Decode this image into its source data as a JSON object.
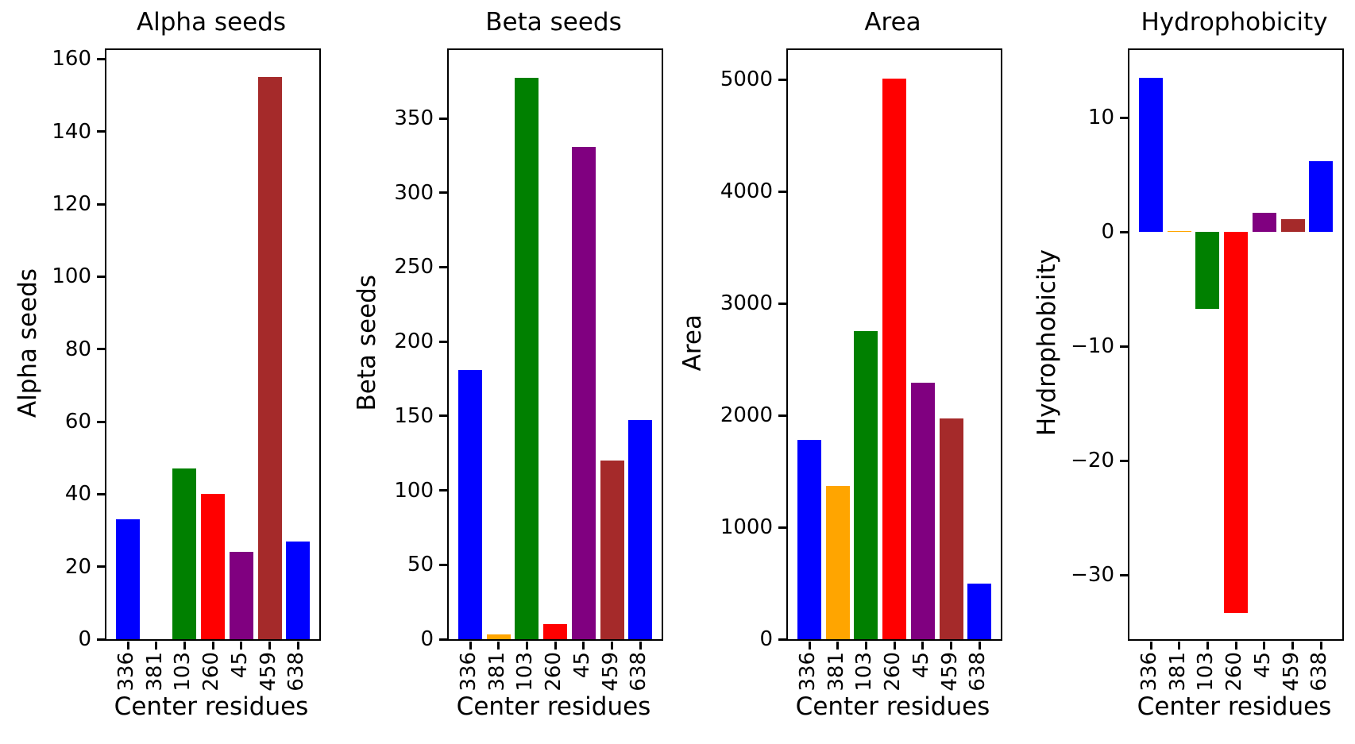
{
  "chart_data": [
    {
      "type": "bar",
      "title": "Alpha seeds",
      "ylabel": "Alpha seeds",
      "xlabel": "Center residues",
      "categories": [
        "336",
        "381",
        "103",
        "260",
        "45",
        "459",
        "638"
      ],
      "values": [
        33,
        0,
        47,
        40,
        24,
        155,
        27
      ],
      "bar_colors": [
        "#0000ff",
        "#ffa500",
        "#008000",
        "#ff0000",
        "#800080",
        "#a52a2a",
        "#0000ff"
      ],
      "yticks": [
        0,
        20,
        40,
        60,
        80,
        100,
        120,
        140,
        160
      ],
      "ytick_labels": [
        "0",
        "20",
        "40",
        "60",
        "80",
        "100",
        "120",
        "140",
        "160"
      ],
      "ylim": [
        0,
        162.5
      ],
      "grid": false,
      "legend_position": "none"
    },
    {
      "type": "bar",
      "title": "Beta seeds",
      "ylabel": "Beta seeds",
      "xlabel": "Center residues",
      "categories": [
        "336",
        "381",
        "103",
        "260",
        "45",
        "459",
        "638"
      ],
      "values": [
        181,
        3,
        377,
        10,
        331,
        120,
        147
      ],
      "bar_colors": [
        "#0000ff",
        "#ffa500",
        "#008000",
        "#ff0000",
        "#800080",
        "#a52a2a",
        "#0000ff"
      ],
      "yticks": [
        0,
        50,
        100,
        150,
        200,
        250,
        300,
        350
      ],
      "ytick_labels": [
        "0",
        "50",
        "100",
        "150",
        "200",
        "250",
        "300",
        "350"
      ],
      "ylim": [
        0,
        395.9
      ],
      "grid": false,
      "legend_position": "none"
    },
    {
      "type": "bar",
      "title": "Area",
      "ylabel": "Area",
      "xlabel": "Center residues",
      "categories": [
        "336",
        "381",
        "103",
        "260",
        "45",
        "459",
        "638"
      ],
      "values": [
        1780,
        1370,
        2750,
        5010,
        2290,
        1970,
        500
      ],
      "bar_colors": [
        "#0000ff",
        "#ffa500",
        "#008000",
        "#ff0000",
        "#800080",
        "#a52a2a",
        "#0000ff"
      ],
      "yticks": [
        0,
        1000,
        2000,
        3000,
        4000,
        5000
      ],
      "ytick_labels": [
        "0",
        "1000",
        "2000",
        "3000",
        "4000",
        "5000"
      ],
      "ylim": [
        0,
        5264
      ],
      "grid": false,
      "legend_position": "none"
    },
    {
      "type": "bar",
      "title": "Hydrophobicity",
      "ylabel": "Hydrophobicity",
      "xlabel": "Center residues",
      "categories": [
        "336",
        "381",
        "103",
        "260",
        "45",
        "459",
        "638"
      ],
      "values": [
        13.5,
        0.1,
        -6.7,
        -33.3,
        1.7,
        1.1,
        6.2
      ],
      "bar_colors": [
        "#0000ff",
        "#ffa500",
        "#008000",
        "#ff0000",
        "#800080",
        "#a52a2a",
        "#0000ff"
      ],
      "yticks": [
        10,
        0,
        -10,
        -20,
        -30
      ],
      "ytick_labels": [
        "10",
        "0",
        "−10",
        "−20",
        "−30"
      ],
      "ylim": [
        -35.6,
        15.9
      ],
      "grid": false,
      "legend_position": "none"
    }
  ]
}
